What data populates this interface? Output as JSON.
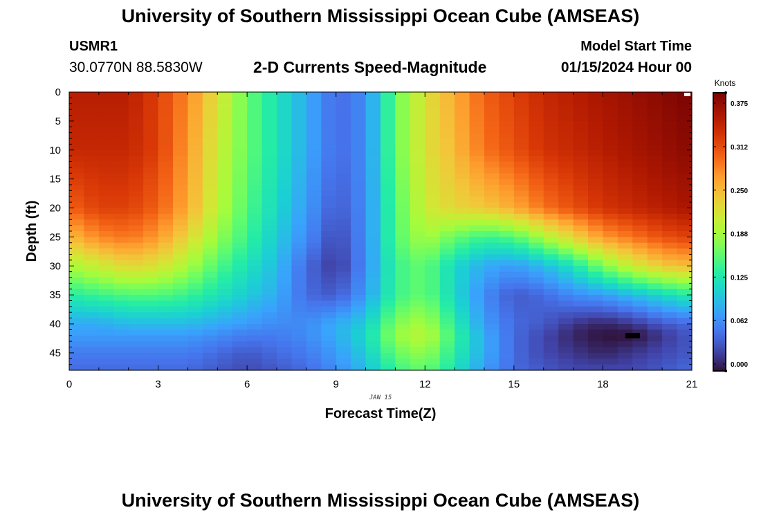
{
  "header": {
    "title": "University of Southern Mississippi Ocean Cube (AMSEAS)",
    "station_id": "USMR1",
    "station_coords": "30.0770N  88.5830W",
    "model_label": "Model Start Time",
    "model_time": "01/15/2024 Hour 00"
  },
  "footer": {
    "title": "University of Southern Mississippi Ocean Cube (AMSEAS)"
  },
  "chart_data": {
    "type": "heatmap",
    "title": "2-D Currents Speed-Magnitude",
    "xlabel": "Forecast Time(Z)",
    "ylabel": "Depth (ft)",
    "x_date_label": "JAN 15",
    "xlim": [
      0,
      21
    ],
    "ylim": [
      48,
      0
    ],
    "x_ticks": [
      0,
      3,
      6,
      9,
      12,
      15,
      18,
      21
    ],
    "y_ticks": [
      0,
      5,
      10,
      15,
      20,
      25,
      30,
      35,
      40,
      45
    ],
    "colorbar": {
      "label": "Knots",
      "range": [
        0.0,
        0.4
      ],
      "ticks": [
        "0.000",
        "0.062",
        "0.125",
        "0.188",
        "0.250",
        "0.312",
        "0.375"
      ],
      "tick_values": [
        0.0,
        0.0625,
        0.125,
        0.1875,
        0.25,
        0.3125,
        0.375
      ],
      "colormap": "turbo"
    },
    "depths_ft": [
      0,
      10,
      20,
      25,
      30,
      35,
      40,
      42,
      45,
      48
    ],
    "times_hr": [
      0,
      1,
      2,
      3,
      4,
      5,
      6,
      7,
      8,
      9,
      10,
      11,
      12,
      13,
      14,
      15,
      16,
      17,
      18,
      19,
      20,
      21
    ],
    "values_knots": [
      [
        0.36,
        0.36,
        0.36,
        0.33,
        0.29,
        0.23,
        0.17,
        0.13,
        0.09,
        0.05,
        0.07,
        0.17,
        0.23,
        0.27,
        0.31,
        0.33,
        0.35,
        0.36,
        0.37,
        0.38,
        0.39,
        0.4
      ],
      [
        0.35,
        0.35,
        0.35,
        0.33,
        0.28,
        0.22,
        0.17,
        0.13,
        0.09,
        0.05,
        0.07,
        0.17,
        0.23,
        0.26,
        0.3,
        0.32,
        0.34,
        0.35,
        0.36,
        0.37,
        0.38,
        0.39
      ],
      [
        0.31,
        0.33,
        0.33,
        0.31,
        0.27,
        0.21,
        0.16,
        0.12,
        0.08,
        0.04,
        0.07,
        0.16,
        0.22,
        0.24,
        0.25,
        0.27,
        0.3,
        0.32,
        0.34,
        0.35,
        0.36,
        0.37
      ],
      [
        0.26,
        0.29,
        0.3,
        0.28,
        0.24,
        0.19,
        0.15,
        0.11,
        0.07,
        0.03,
        0.07,
        0.16,
        0.2,
        0.17,
        0.15,
        0.16,
        0.2,
        0.24,
        0.28,
        0.3,
        0.32,
        0.33
      ],
      [
        0.2,
        0.22,
        0.24,
        0.23,
        0.2,
        0.16,
        0.13,
        0.1,
        0.05,
        0.02,
        0.07,
        0.15,
        0.17,
        0.12,
        0.09,
        0.08,
        0.1,
        0.13,
        0.18,
        0.22,
        0.25,
        0.26
      ],
      [
        0.14,
        0.15,
        0.16,
        0.16,
        0.15,
        0.13,
        0.11,
        0.09,
        0.05,
        0.04,
        0.08,
        0.15,
        0.17,
        0.12,
        0.07,
        0.04,
        0.05,
        0.07,
        0.08,
        0.1,
        0.12,
        0.14
      ],
      [
        0.09,
        0.09,
        0.1,
        0.1,
        0.1,
        0.09,
        0.08,
        0.07,
        0.07,
        0.09,
        0.11,
        0.18,
        0.2,
        0.14,
        0.08,
        0.05,
        0.04,
        0.02,
        0.01,
        0.02,
        0.04,
        0.05
      ],
      [
        0.08,
        0.08,
        0.08,
        0.08,
        0.08,
        0.07,
        0.06,
        0.06,
        0.07,
        0.09,
        0.12,
        0.19,
        0.21,
        0.15,
        0.09,
        0.05,
        0.03,
        0.01,
        0.0,
        0.0,
        0.02,
        0.04
      ],
      [
        0.06,
        0.06,
        0.06,
        0.06,
        0.06,
        0.05,
        0.04,
        0.05,
        0.06,
        0.08,
        0.11,
        0.17,
        0.19,
        0.14,
        0.09,
        0.05,
        0.03,
        0.02,
        0.01,
        0.02,
        0.03,
        0.04
      ],
      [
        0.05,
        0.05,
        0.05,
        0.05,
        0.05,
        0.04,
        0.03,
        0.04,
        0.05,
        0.07,
        0.1,
        0.15,
        0.17,
        0.13,
        0.08,
        0.05,
        0.04,
        0.03,
        0.03,
        0.03,
        0.04,
        0.05
      ]
    ]
  }
}
